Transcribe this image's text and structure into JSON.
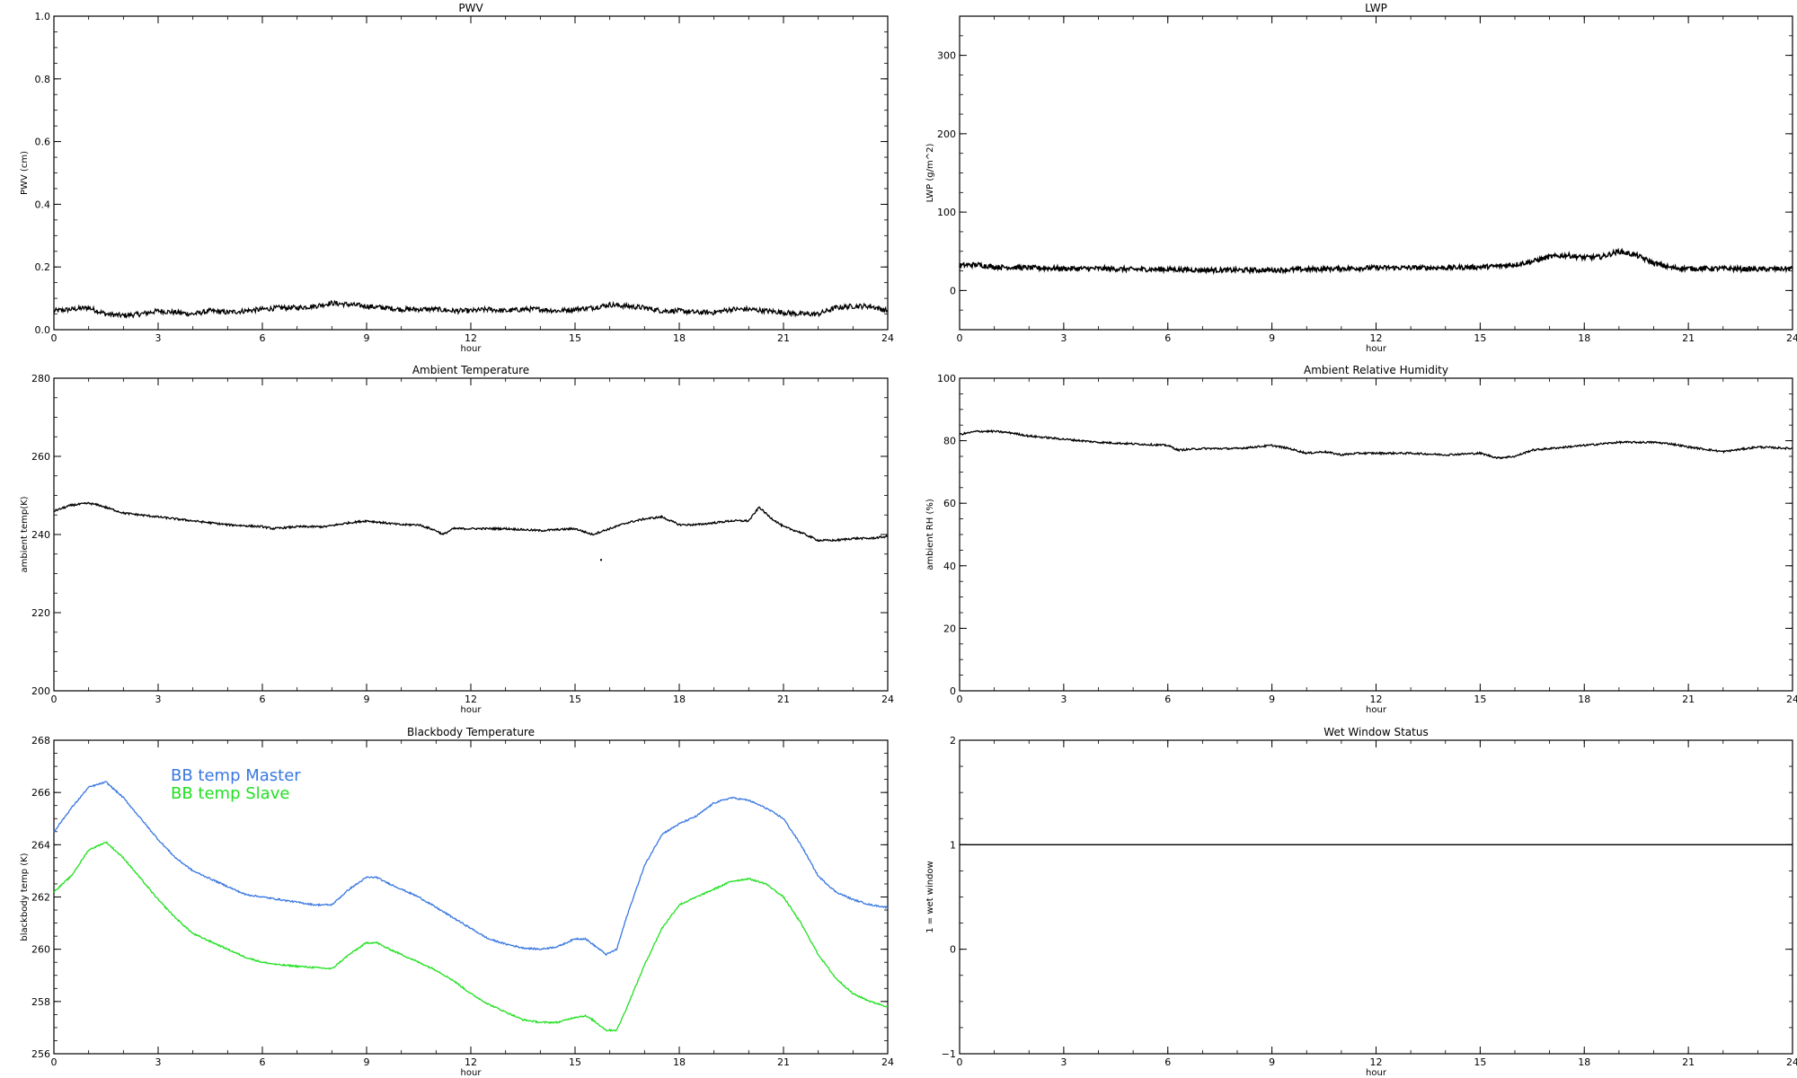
{
  "chart_data": [
    {
      "id": "pwv",
      "type": "line",
      "title": "PWV",
      "xlabel": "hour",
      "ylabel": "PWV (cm)",
      "xlim": [
        0,
        24
      ],
      "ylim": [
        0.0,
        1.0
      ],
      "xticks": [
        "0",
        "3",
        "6",
        "9",
        "12",
        "15",
        "18",
        "21",
        "24"
      ],
      "yticks": [
        "0.0",
        "0.2",
        "0.4",
        "0.6",
        "0.8",
        "1.0"
      ],
      "series": [
        {
          "color": "#000000",
          "noise": 0.008,
          "x": [
            0,
            0.5,
            1,
            1.5,
            2,
            2.5,
            3,
            3.5,
            4,
            4.5,
            5,
            5.5,
            6,
            6.5,
            7,
            7.5,
            8,
            8.5,
            9,
            9.5,
            10,
            10.5,
            11,
            11.5,
            12,
            12.5,
            13,
            13.5,
            14,
            14.5,
            15,
            15.5,
            16,
            16.5,
            17,
            17.5,
            18,
            18.5,
            19,
            19.5,
            20,
            20.5,
            21,
            21.5,
            22,
            22.5,
            23,
            23.5,
            24
          ],
          "y": [
            0.06,
            0.065,
            0.07,
            0.05,
            0.045,
            0.05,
            0.06,
            0.055,
            0.05,
            0.06,
            0.055,
            0.06,
            0.065,
            0.07,
            0.07,
            0.075,
            0.085,
            0.08,
            0.075,
            0.07,
            0.065,
            0.065,
            0.065,
            0.06,
            0.06,
            0.065,
            0.06,
            0.065,
            0.065,
            0.06,
            0.065,
            0.07,
            0.08,
            0.075,
            0.07,
            0.06,
            0.06,
            0.055,
            0.055,
            0.065,
            0.065,
            0.06,
            0.055,
            0.05,
            0.05,
            0.07,
            0.075,
            0.075,
            0.06
          ]
        }
      ]
    },
    {
      "id": "lwp",
      "type": "line",
      "title": "LWP",
      "xlabel": "hour",
      "ylabel": "LWP (g/m^2)",
      "xlim": [
        0,
        24
      ],
      "ylim": [
        -50,
        350
      ],
      "xticks": [
        "0",
        "3",
        "6",
        "9",
        "12",
        "15",
        "18",
        "21",
        "24"
      ],
      "yticks": [
        "0",
        "100",
        "200",
        "300"
      ],
      "yticks_values": [
        0,
        100,
        200,
        300
      ],
      "series": [
        {
          "color": "#000000",
          "noise": 3,
          "x": [
            0,
            0.5,
            1,
            2,
            3,
            4,
            5,
            6,
            7,
            8,
            9,
            10,
            11,
            12,
            13,
            14,
            15,
            15.5,
            16,
            16.5,
            17,
            17.5,
            18,
            18.5,
            19,
            19.5,
            20,
            20.5,
            21,
            22,
            23,
            24
          ],
          "y": [
            32,
            33,
            30,
            29,
            28,
            28,
            27,
            27,
            26,
            26,
            26,
            27,
            28,
            29,
            29,
            29,
            30,
            31,
            33,
            37,
            43,
            45,
            42,
            43,
            50,
            45,
            35,
            29,
            28,
            28,
            27,
            28
          ]
        }
      ]
    },
    {
      "id": "ambient-temp",
      "type": "line",
      "title": "Ambient Temperature",
      "xlabel": "hour",
      "ylabel": "ambient temp(K)",
      "xlim": [
        0,
        24
      ],
      "ylim": [
        200,
        280
      ],
      "xticks": [
        "0",
        "3",
        "6",
        "9",
        "12",
        "15",
        "18",
        "21",
        "24"
      ],
      "yticks": [
        "200",
        "220",
        "240",
        "260",
        "280"
      ],
      "series": [
        {
          "color": "#000000",
          "noise": 0.25,
          "x": [
            0,
            0.5,
            1,
            1.3,
            2,
            3,
            4,
            5,
            6,
            6.3,
            7,
            7.8,
            8.5,
            9,
            9.5,
            10,
            10.5,
            11,
            11.2,
            11.5,
            12,
            13,
            14,
            15,
            15.5,
            16,
            16.5,
            17,
            17.5,
            18,
            18.5,
            19,
            19.5,
            20,
            20.3,
            20.6,
            21,
            21.5,
            22,
            22.5,
            23,
            23.5,
            24
          ],
          "y": [
            246,
            247.5,
            248,
            247.5,
            245.5,
            244.5,
            243.5,
            242.5,
            242,
            241.5,
            242,
            242,
            243,
            243.5,
            243,
            242.5,
            242.5,
            241,
            240,
            241.5,
            241.5,
            241.5,
            241,
            241.5,
            240,
            241.5,
            243,
            244,
            244.5,
            242.5,
            242.5,
            243,
            243.5,
            243.5,
            247,
            244.5,
            242,
            240.5,
            238.5,
            238.5,
            239,
            239,
            239.5
          ]
        },
        {
          "color": "#000000",
          "points": [
            [
              15.75,
              233.5
            ]
          ]
        }
      ]
    },
    {
      "id": "ambient-rh",
      "type": "line",
      "title": "Ambient Relative Humidity",
      "xlabel": "hour",
      "ylabel": "ambient RH (%)",
      "xlim": [
        0,
        24
      ],
      "ylim": [
        0,
        100
      ],
      "xticks": [
        "0",
        "3",
        "6",
        "9",
        "12",
        "15",
        "18",
        "21",
        "24"
      ],
      "yticks": [
        "0",
        "20",
        "40",
        "60",
        "80",
        "100"
      ],
      "series": [
        {
          "color": "#000000",
          "noise": 0.3,
          "x": [
            0,
            0.5,
            1,
            1.5,
            2,
            3,
            4,
            5,
            6,
            6.3,
            7,
            8,
            8.5,
            9,
            9.5,
            10,
            10.5,
            11,
            11.5,
            12,
            13,
            14,
            15,
            15.5,
            16,
            16.5,
            17,
            18,
            19,
            20,
            20.5,
            21,
            22,
            23,
            24
          ],
          "y": [
            82,
            83,
            83,
            82.5,
            81.5,
            80.5,
            79.5,
            79,
            78.5,
            77,
            77.5,
            77.5,
            78,
            78.5,
            77.5,
            76,
            76.5,
            75.5,
            76,
            76,
            76,
            75.5,
            76,
            74.5,
            75,
            77,
            77.5,
            78.5,
            79.5,
            79.5,
            79,
            78,
            76.5,
            78,
            77.5
          ]
        }
      ]
    },
    {
      "id": "bb-temp",
      "type": "line",
      "title": "Blackbody Temperature",
      "xlabel": "hour",
      "ylabel": "blackbody temp (K)",
      "xlim": [
        0,
        24
      ],
      "ylim": [
        256,
        268
      ],
      "xticks": [
        "0",
        "3",
        "6",
        "9",
        "12",
        "15",
        "18",
        "21",
        "24"
      ],
      "yticks": [
        "256",
        "258",
        "260",
        "262",
        "264",
        "266",
        "268"
      ],
      "legend": [
        {
          "label": "BB temp Master",
          "color": "#3a78e0"
        },
        {
          "label": "BB temp Slave",
          "color": "#22e022"
        }
      ],
      "series": [
        {
          "name": "BB temp Master",
          "color": "#3a78e0",
          "noise": 0.03,
          "x": [
            0,
            0.5,
            1,
            1.5,
            2,
            2.5,
            3,
            3.5,
            4,
            4.5,
            5,
            5.5,
            6,
            6.5,
            7,
            7.5,
            8,
            8.5,
            9,
            9.3,
            9.5,
            10,
            10.5,
            11,
            11.5,
            12,
            12.5,
            13,
            13.5,
            14,
            14.5,
            15,
            15.3,
            15.5,
            15.9,
            16.2,
            16.5,
            17,
            17.5,
            18,
            18.5,
            19,
            19.5,
            20,
            20.5,
            21,
            21.5,
            22,
            22.5,
            23,
            23.5,
            24
          ],
          "y": [
            264.5,
            265.4,
            266.2,
            266.4,
            265.8,
            265.0,
            264.2,
            263.5,
            263.0,
            262.7,
            262.4,
            262.1,
            262.0,
            261.9,
            261.8,
            261.7,
            261.7,
            262.3,
            262.75,
            262.75,
            262.6,
            262.3,
            262.0,
            261.6,
            261.2,
            260.8,
            260.4,
            260.2,
            260.05,
            260.0,
            260.1,
            260.4,
            260.4,
            260.2,
            259.8,
            260.0,
            261.3,
            263.2,
            264.4,
            264.8,
            265.1,
            265.6,
            265.8,
            265.7,
            265.4,
            265.0,
            264.0,
            262.8,
            262.2,
            261.9,
            261.7,
            261.6
          ]
        },
        {
          "name": "BB temp Slave",
          "color": "#22e022",
          "noise": 0.03,
          "x": [
            0,
            0.5,
            1,
            1.5,
            2,
            2.5,
            3,
            3.5,
            4,
            4.5,
            5,
            5.5,
            6,
            6.5,
            7,
            7.5,
            8,
            8.5,
            9,
            9.3,
            9.5,
            10,
            10.5,
            11,
            11.5,
            12,
            12.5,
            13,
            13.5,
            14,
            14.5,
            15,
            15.3,
            15.5,
            15.9,
            16.2,
            16.5,
            17,
            17.5,
            18,
            18.5,
            19,
            19.5,
            20,
            20.5,
            21,
            21.5,
            22,
            22.5,
            23,
            23.5,
            24
          ],
          "y": [
            262.2,
            262.8,
            263.8,
            264.1,
            263.5,
            262.7,
            261.9,
            261.2,
            260.6,
            260.3,
            260.0,
            259.7,
            259.5,
            259.4,
            259.35,
            259.3,
            259.25,
            259.8,
            260.25,
            260.25,
            260.1,
            259.8,
            259.5,
            259.2,
            258.8,
            258.3,
            257.9,
            257.6,
            257.3,
            257.2,
            257.2,
            257.4,
            257.45,
            257.3,
            256.9,
            256.9,
            257.8,
            259.4,
            260.8,
            261.7,
            262.0,
            262.3,
            262.6,
            262.7,
            262.5,
            262.0,
            261.0,
            259.8,
            258.9,
            258.3,
            258.0,
            257.8
          ]
        }
      ]
    },
    {
      "id": "wet-window",
      "type": "line",
      "title": "Wet Window Status",
      "xlabel": "hour",
      "ylabel": "1 = wet window",
      "xlim": [
        0,
        24
      ],
      "ylim": [
        -1,
        2
      ],
      "xticks": [
        "0",
        "3",
        "6",
        "9",
        "12",
        "15",
        "18",
        "21",
        "24"
      ],
      "yticks": [
        "−1",
        "0",
        "1",
        "2"
      ],
      "yticks_values": [
        -1,
        0,
        1,
        2
      ],
      "series": [
        {
          "color": "#000000",
          "noise": 0,
          "x": [
            0,
            24
          ],
          "y": [
            1,
            1
          ]
        }
      ]
    }
  ]
}
